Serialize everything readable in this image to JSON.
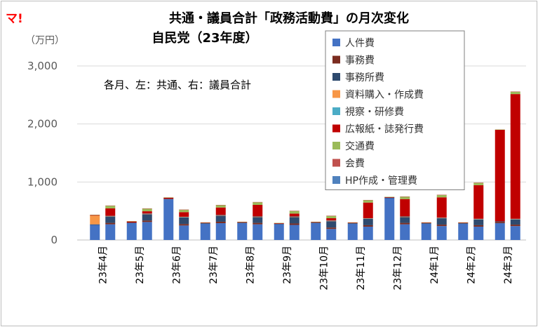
{
  "logo": "マ!",
  "chart_data": {
    "type": "bar",
    "stacked": true,
    "title": "共通・議員合計「政務活動費」の月次変化",
    "subtitle": "自民党（23年度）",
    "unit_label": "（万円）",
    "annotation": "各月、左：共通、右：議員合計",
    "ylim": [
      0,
      3000
    ],
    "yticks": [
      0,
      1000,
      2000,
      3000
    ],
    "ytick_labels": [
      "0",
      "1,000",
      "2,000",
      "3,000"
    ],
    "grid": true,
    "legend_position": "top-right",
    "x_labels": [
      "23年4月",
      "23年5月",
      "23年6月",
      "23年7月",
      "23年8月",
      "23年9月",
      "23年10月",
      "23年11月",
      "23年12月",
      "24年1月",
      "24年2月",
      "24年3月"
    ],
    "categories": [
      "23年4月 共通",
      "23年4月 議員合計",
      "23年5月 共通",
      "23年5月 議員合計",
      "23年6月 共通",
      "23年6月 議員合計",
      "23年7月 共通",
      "23年7月 議員合計",
      "23年8月 共通",
      "23年8月 議員合計",
      "23年9月 共通",
      "23年9月 議員合計",
      "23年10月 共通",
      "23年10月 議員合計",
      "23年11月 共通",
      "23年11月 議員合計",
      "23年12月 共通",
      "23年12月 議員合計",
      "24年1月 共通",
      "24年1月 議員合計",
      "24年2月 共通",
      "24年2月 議員合計",
      "24年3月 共通",
      "24年3月 議員合計"
    ],
    "series": [
      {
        "name": "人件費",
        "color": "#4472C4",
        "values": [
          260,
          270,
          290,
          310,
          700,
          250,
          280,
          290,
          290,
          270,
          270,
          260,
          290,
          190,
          280,
          230,
          720,
          270,
          280,
          240,
          280,
          230,
          290,
          240
        ]
      },
      {
        "name": "事務費",
        "color": "#7B2C20",
        "values": [
          0,
          25,
          0,
          25,
          0,
          25,
          0,
          25,
          0,
          25,
          0,
          25,
          0,
          25,
          0,
          25,
          0,
          25,
          0,
          25,
          0,
          25,
          20,
          25
        ]
      },
      {
        "name": "事務所費",
        "color": "#2E4A6E",
        "values": [
          10,
          110,
          10,
          110,
          10,
          115,
          10,
          105,
          10,
          100,
          10,
          110,
          10,
          110,
          10,
          110,
          10,
          100,
          10,
          110,
          10,
          100,
          10,
          90
        ]
      },
      {
        "name": "資料購入・作成費",
        "color": "#F79646",
        "values": [
          150,
          5,
          0,
          5,
          0,
          5,
          0,
          5,
          0,
          5,
          0,
          5,
          0,
          5,
          0,
          5,
          0,
          5,
          0,
          5,
          0,
          5,
          0,
          5
        ]
      },
      {
        "name": "視察・研修費",
        "color": "#4BACC6",
        "values": [
          0,
          5,
          0,
          5,
          0,
          5,
          0,
          5,
          0,
          5,
          0,
          5,
          0,
          5,
          0,
          5,
          0,
          5,
          0,
          5,
          0,
          5,
          0,
          5
        ]
      },
      {
        "name": "広報紙・誌発行費",
        "color": "#C00000",
        "values": [
          10,
          130,
          20,
          40,
          20,
          80,
          10,
          130,
          10,
          200,
          10,
          50,
          10,
          40,
          10,
          270,
          10,
          300,
          10,
          350,
          10,
          580,
          1580,
          2150
        ]
      },
      {
        "name": "交通費",
        "color": "#9BBB59",
        "values": [
          5,
          45,
          5,
          45,
          5,
          40,
          5,
          40,
          5,
          45,
          5,
          45,
          5,
          40,
          5,
          40,
          5,
          40,
          5,
          40,
          5,
          40,
          5,
          40
        ]
      },
      {
        "name": "会費",
        "color": "#C0504D",
        "values": [
          0,
          5,
          0,
          5,
          0,
          5,
          0,
          5,
          0,
          5,
          0,
          5,
          0,
          5,
          0,
          5,
          0,
          5,
          0,
          5,
          0,
          5,
          0,
          5
        ]
      },
      {
        "name": "HP作成・管理費",
        "color": "#4F81BD",
        "values": [
          0,
          0,
          0,
          0,
          0,
          0,
          0,
          0,
          0,
          0,
          0,
          0,
          0,
          0,
          0,
          0,
          0,
          0,
          0,
          0,
          0,
          0,
          0,
          0
        ]
      }
    ]
  }
}
